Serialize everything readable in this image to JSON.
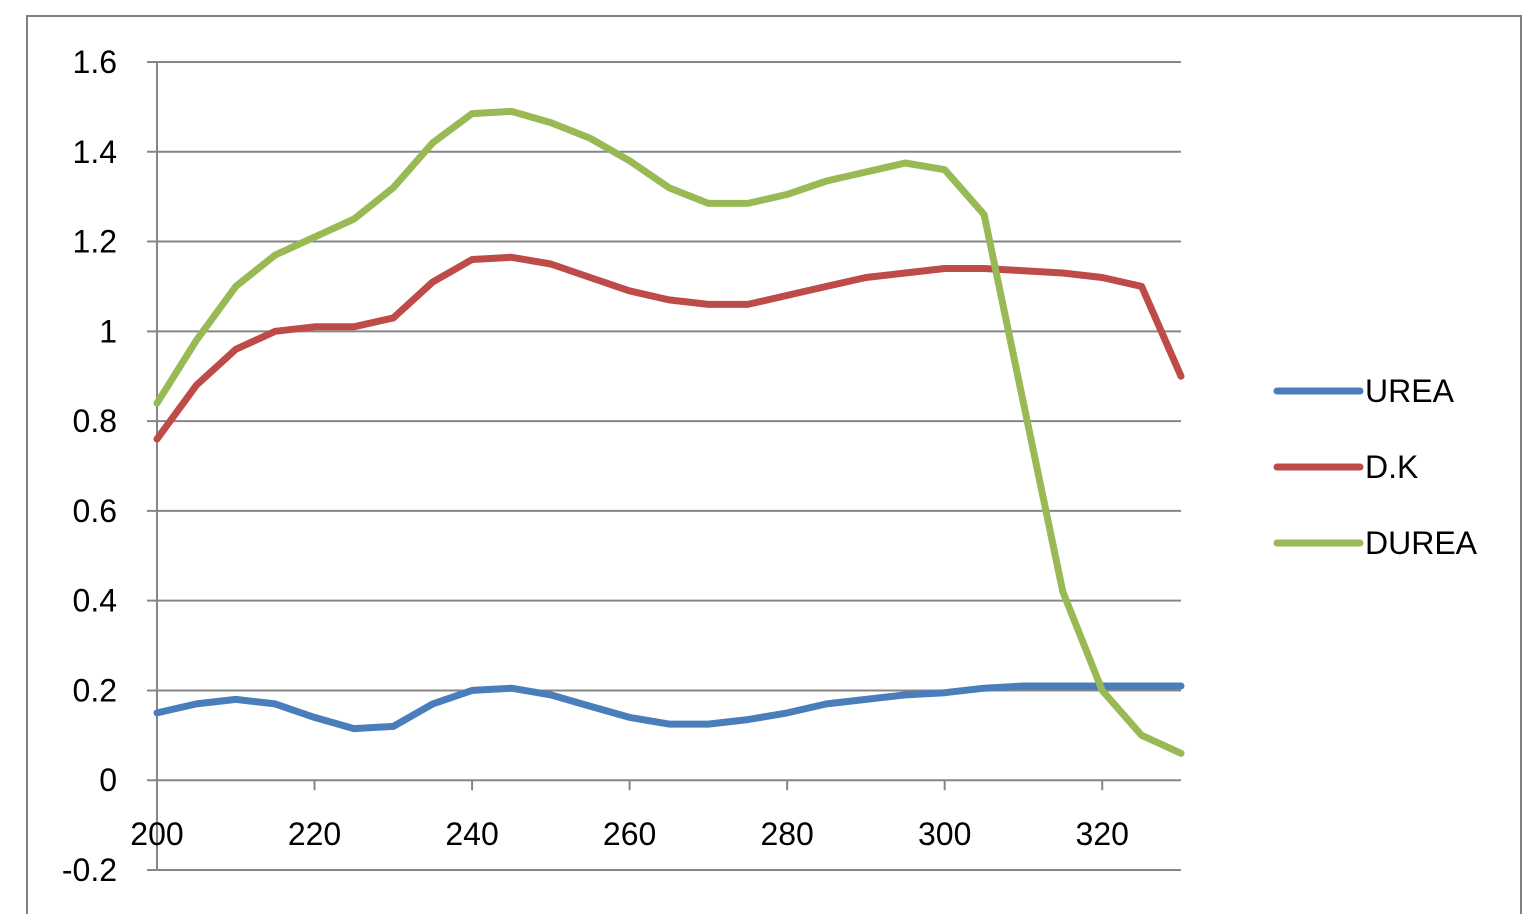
{
  "chart_data": {
    "type": "line",
    "title": "",
    "xlabel": "",
    "ylabel": "",
    "xlim": [
      200,
      330
    ],
    "ylim": [
      -0.2,
      1.6
    ],
    "grid": true,
    "legend_position": "right",
    "x_ticks": [
      "200",
      "220",
      "240",
      "260",
      "280",
      "300",
      "320"
    ],
    "y_ticks": [
      "1.6",
      "1.4",
      "1.2",
      "1",
      "0.8",
      "0.6",
      "0.4",
      "0.2",
      "0",
      "-0.2"
    ],
    "x": [
      200,
      205,
      210,
      215,
      220,
      225,
      230,
      235,
      240,
      245,
      250,
      255,
      260,
      265,
      270,
      275,
      280,
      285,
      290,
      295,
      300,
      305,
      310,
      315,
      320,
      325,
      330
    ],
    "series": [
      {
        "name": "UREA",
        "color": "#4a7ebb",
        "values": [
          0.15,
          0.17,
          0.18,
          0.17,
          0.14,
          0.115,
          0.12,
          0.17,
          0.2,
          0.205,
          0.19,
          0.165,
          0.14,
          0.125,
          0.125,
          0.135,
          0.15,
          0.17,
          0.18,
          0.19,
          0.195,
          0.205,
          0.21,
          0.21,
          0.21,
          0.21,
          0.21
        ]
      },
      {
        "name": "D.K",
        "color": "#be4b48",
        "values": [
          0.76,
          0.88,
          0.96,
          1.0,
          1.01,
          1.01,
          1.03,
          1.11,
          1.16,
          1.165,
          1.15,
          1.12,
          1.09,
          1.07,
          1.06,
          1.06,
          1.08,
          1.1,
          1.12,
          1.13,
          1.14,
          1.14,
          1.135,
          1.13,
          1.12,
          1.1,
          0.9
        ]
      },
      {
        "name": "DUREA",
        "color": "#98b954",
        "values": [
          0.84,
          0.98,
          1.1,
          1.17,
          1.21,
          1.25,
          1.32,
          1.42,
          1.485,
          1.49,
          1.465,
          1.43,
          1.38,
          1.32,
          1.285,
          1.285,
          1.305,
          1.335,
          1.355,
          1.375,
          1.36,
          1.26,
          0.84,
          0.42,
          0.2,
          0.1,
          0.06
        ]
      }
    ]
  }
}
